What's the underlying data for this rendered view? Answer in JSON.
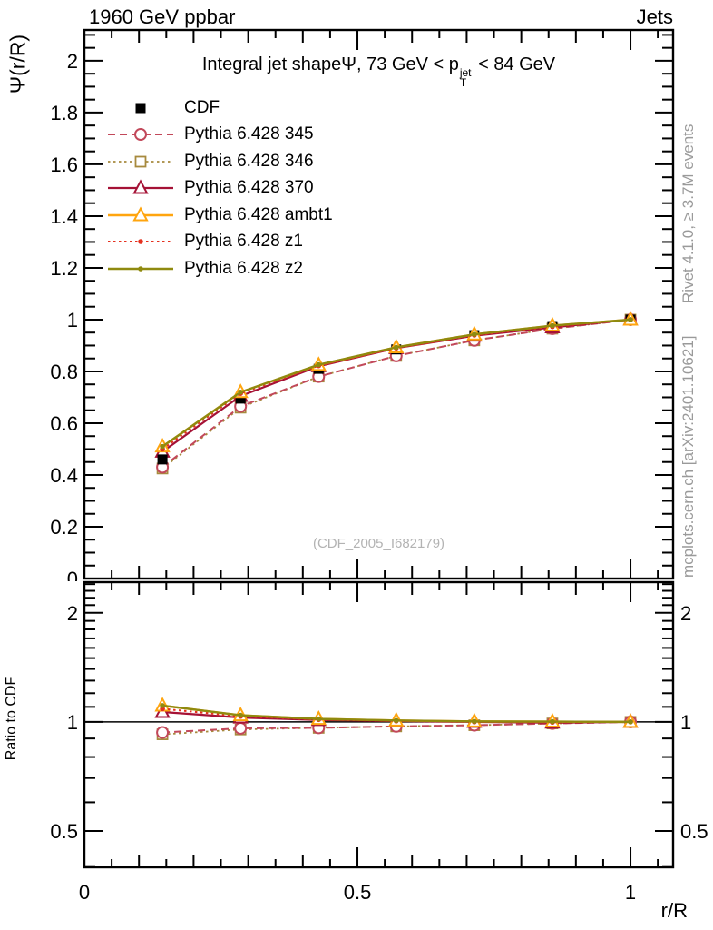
{
  "header": {
    "left": "1960 GeV ppbar",
    "right": "Jets"
  },
  "side_notes": {
    "top": "Rivet 4.1.0, ≥ 3.7M events",
    "bottom": "mcplots.cern.ch [arXiv:2401.10621]"
  },
  "watermark": "(CDF_2005_I682179)",
  "title_parts": {
    "left": "Integral jet shapeΨ, 73 GeV < p",
    "sup": "jet",
    "sub": "T",
    "right": " < 84 GeV"
  },
  "chart_data": {
    "type": "line",
    "title": "Integral jet shape Psi, 73 GeV < pT(jet) < 84 GeV",
    "xlabel": "r/R",
    "ylabel_main": "Ψ(r/R)",
    "ylabel_ratio": "Ratio to CDF",
    "x": [
      0.143,
      0.286,
      0.429,
      0.571,
      0.714,
      0.857,
      1.0
    ],
    "series": [
      {
        "label": "CDF",
        "color": "#000000",
        "line": "none",
        "marker": "square-filled",
        "width": 0,
        "values": [
          0.46,
          0.695,
          0.81,
          0.885,
          0.94,
          0.975,
          1.0
        ],
        "ratio": "reference"
      },
      {
        "label": "Pythia 6.428 345",
        "color": "#c2485a",
        "line": "dash",
        "marker": "circle-open",
        "width": 2,
        "values": [
          0.43,
          0.665,
          0.78,
          0.86,
          0.92,
          0.965,
          1.0
        ],
        "ratio": [
          0.935,
          0.96,
          0.963,
          0.972,
          0.979,
          0.99,
          1.0
        ]
      },
      {
        "label": "Pythia 6.428 346",
        "color": "#a78a3e",
        "line": "dot",
        "marker": "square-open",
        "width": 1.8,
        "values": [
          0.425,
          0.66,
          0.78,
          0.86,
          0.92,
          0.965,
          1.0
        ],
        "ratio": [
          0.924,
          0.953,
          0.963,
          0.972,
          0.979,
          0.99,
          1.0
        ]
      },
      {
        "label": "Pythia 6.428 370",
        "color": "#a51236",
        "line": "solid",
        "marker": "triangle-open",
        "width": 2.2,
        "values": [
          0.49,
          0.705,
          0.82,
          0.89,
          0.938,
          0.97,
          1.0
        ],
        "ratio": [
          1.065,
          1.028,
          1.012,
          1.006,
          1.0,
          0.995,
          1.0
        ]
      },
      {
        "label": "Pythia 6.428 ambt1",
        "color": "#ffa50f",
        "line": "solid",
        "marker": "triangle-open",
        "width": 2.4,
        "values": [
          0.51,
          0.72,
          0.825,
          0.893,
          0.943,
          0.977,
          1.0
        ],
        "ratio": [
          1.109,
          1.043,
          1.019,
          1.009,
          1.003,
          1.002,
          1.0
        ]
      },
      {
        "label": "Pythia 6.428 z1",
        "color": "#e5311f",
        "line": "dot",
        "marker": "dot",
        "width": 2,
        "values": [
          0.5,
          0.715,
          0.822,
          0.89,
          0.94,
          0.973,
          1.0
        ],
        "ratio": [
          1.087,
          1.036,
          1.015,
          1.006,
          1.0,
          0.998,
          1.0
        ]
      },
      {
        "label": "Pythia 6.428 z2",
        "color": "#8f8a0f",
        "line": "solid",
        "marker": "dot",
        "width": 2.4,
        "values": [
          0.51,
          0.72,
          0.826,
          0.893,
          0.943,
          0.977,
          1.0
        ],
        "ratio": [
          1.109,
          1.043,
          1.019,
          1.009,
          1.003,
          1.002,
          1.0
        ]
      }
    ],
    "axes": {
      "x": {
        "min": 0,
        "max": 1.078,
        "minor_step": 0.05,
        "majors": [
          {
            "v": 0,
            "label": "0"
          },
          {
            "v": 0.5,
            "label": "0.5"
          },
          {
            "v": 1,
            "label": "1"
          }
        ]
      },
      "y_main": {
        "min": 0,
        "max": 2.119,
        "minor_step": 0.05,
        "majors": [
          {
            "v": 0,
            "label": "0"
          },
          {
            "v": 0.2,
            "label": "0.2"
          },
          {
            "v": 0.4,
            "label": "0.4"
          },
          {
            "v": 0.6,
            "label": "0.6"
          },
          {
            "v": 0.8,
            "label": "0.8"
          },
          {
            "v": 1,
            "label": "1"
          },
          {
            "v": 1.2,
            "label": "1.2"
          },
          {
            "v": 1.4,
            "label": "1.4"
          },
          {
            "v": 1.6,
            "label": "1.6"
          },
          {
            "v": 1.8,
            "label": "1.8"
          },
          {
            "v": 2,
            "label": "2"
          }
        ]
      },
      "y_ratio": {
        "scale": "log",
        "min": 0.397,
        "max": 2.43,
        "majors": [
          {
            "v": 0.5,
            "label": "0.5"
          },
          {
            "v": 1,
            "label": "1"
          },
          {
            "v": 2,
            "label": "2"
          }
        ],
        "minors": [
          0.4,
          0.6,
          0.7,
          0.8,
          0.9,
          1.1,
          1.2,
          1.3,
          1.4,
          1.5,
          1.6,
          1.7,
          1.8,
          1.9,
          2.1,
          2.2,
          2.3,
          2.4
        ]
      }
    },
    "legend_position": "top-left",
    "grid": false
  }
}
